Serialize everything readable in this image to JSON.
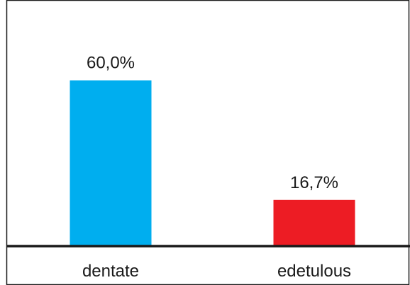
{
  "chart_data": {
    "type": "bar",
    "categories": [
      "dentate",
      "edetulous"
    ],
    "values": [
      60.0,
      16.7
    ],
    "value_labels": [
      "60,0%",
      "16,7%"
    ],
    "colors": [
      "#00aeef",
      "#ed1c24"
    ],
    "title": "",
    "xlabel": "",
    "ylabel": "",
    "ylim": [
      0,
      75
    ],
    "grid": false,
    "legend": "none"
  }
}
